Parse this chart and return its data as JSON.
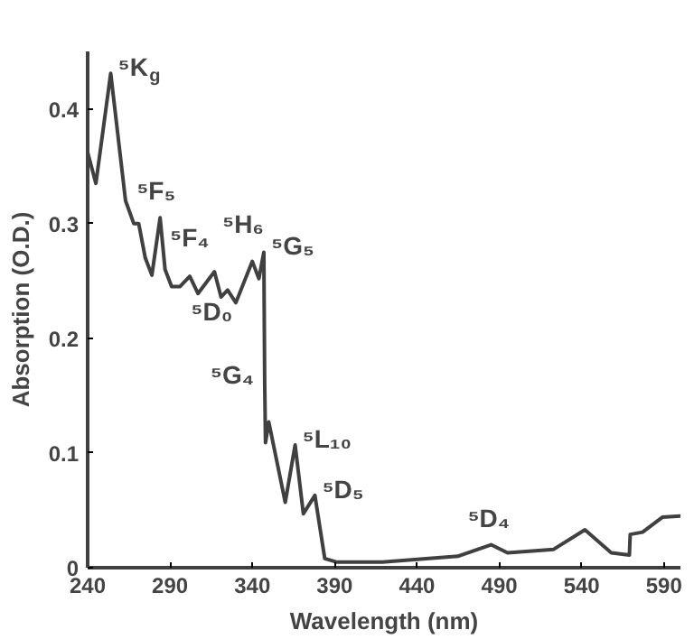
{
  "chart_data": {
    "type": "line",
    "xlabel": "Wavelength (nm)",
    "ylabel": "Absorption (O.D.)",
    "x": [
      240,
      245,
      254,
      263,
      268,
      271,
      275,
      279,
      284,
      287,
      291,
      296,
      302,
      307,
      317,
      321,
      325,
      330,
      340,
      344,
      347,
      347.5,
      348,
      350,
      360,
      366,
      371,
      378,
      384,
      391,
      419,
      465,
      485,
      495,
      523,
      542,
      558,
      569,
      569.5,
      577,
      589,
      600
    ],
    "series": [
      {
        "color": "#404040",
        "values": [
          0.362,
          0.335,
          0.431,
          0.32,
          0.3,
          0.3,
          0.27,
          0.255,
          0.305,
          0.26,
          0.245,
          0.245,
          0.254,
          0.239,
          0.258,
          0.236,
          0.242,
          0.231,
          0.267,
          0.252,
          0.275,
          0.163,
          0.109,
          0.127,
          0.057,
          0.107,
          0.047,
          0.063,
          0.008,
          0.005,
          0.005,
          0.01,
          0.02,
          0.013,
          0.016,
          0.033,
          0.013,
          0.011,
          0.029,
          0.031,
          0.044,
          0.045
        ]
      }
    ],
    "xlim": [
      240,
      600
    ],
    "ylim": [
      0,
      0.45
    ],
    "xticks": [
      240,
      290,
      340,
      390,
      440,
      490,
      540,
      590
    ],
    "yticks": [
      {
        "value": 0,
        "label": "0"
      },
      0.1,
      0.2,
      0.3,
      0.4
    ],
    "grid": false,
    "annotations": [
      {
        "text": "⁵K$_{g}$",
        "x": 254,
        "y": 0.431
      },
      {
        "text": "⁵F₅",
        "x": 284,
        "y": 0.305
      },
      {
        "text": "⁵F₄",
        "x": 279,
        "y": 0.255
      },
      {
        "text": "⁵H₆",
        "x": 302,
        "y": 0.254
      },
      {
        "text": "⁵D₀",
        "x": 317,
        "y": 0.258
      },
      {
        "text": "⁵G₅",
        "x": 347,
        "y": 0.275
      },
      {
        "text": "⁵G₄",
        "x": 347.5,
        "y": 0.163
      },
      {
        "text": "⁵L₁₀",
        "x": 366,
        "y": 0.107
      },
      {
        "text": "⁵D₅",
        "x": 378,
        "y": 0.063
      },
      {
        "text": "⁵D₄",
        "x": 485,
        "y": 0.02
      }
    ]
  }
}
